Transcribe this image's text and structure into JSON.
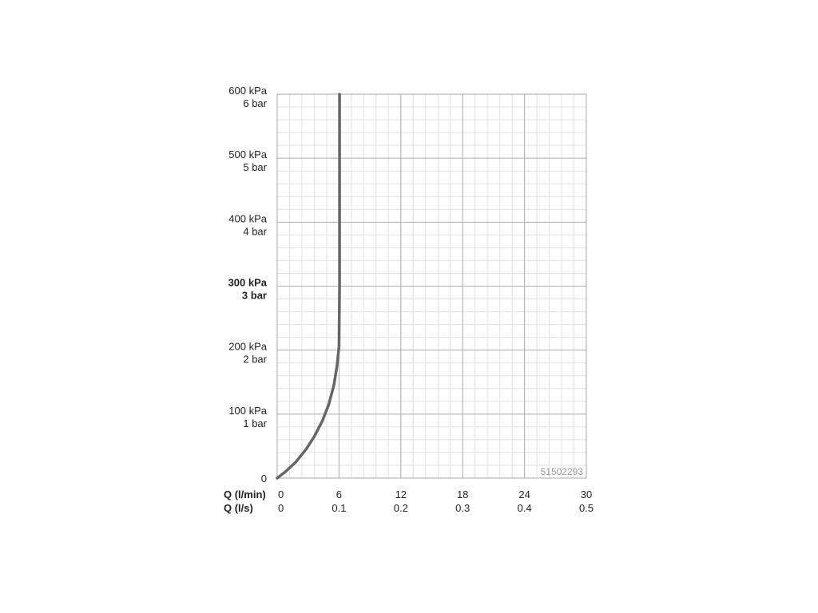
{
  "chart_data": {
    "type": "line",
    "title": "",
    "code_label": "51502293",
    "grid": true,
    "xlim": [
      0,
      30
    ],
    "ylim": [
      0,
      600
    ],
    "x_ticks": [
      0,
      6,
      12,
      18,
      24,
      30
    ],
    "x_labels_primary": {
      "title": "Q (l/min)",
      "labels": [
        "0",
        "6",
        "12",
        "18",
        "24",
        "30"
      ]
    },
    "x_labels_secondary": {
      "title": "Q (l/s)",
      "labels": [
        "0",
        "0.1",
        "0.2",
        "0.3",
        "0.4",
        "0.5"
      ]
    },
    "y_ticks": [
      0,
      100,
      200,
      300,
      400,
      500,
      600
    ],
    "y_labels": [
      {
        "kpa": "0",
        "bar": ""
      },
      {
        "kpa": "100 kPa",
        "bar": "1 bar"
      },
      {
        "kpa": "200 kPa",
        "bar": "2 bar"
      },
      {
        "kpa": "300 kPa",
        "bar": "3 bar"
      },
      {
        "kpa": "400 kPa",
        "bar": "4 bar"
      },
      {
        "kpa": "500 kPa",
        "bar": "5 bar"
      },
      {
        "kpa": "600 kPa",
        "bar": "6 bar"
      }
    ],
    "series": [
      {
        "x": [
          0,
          0.8,
          1.8,
          2.8,
          3.6,
          4.4,
          5.0,
          5.5,
          5.8,
          6.0,
          6.05,
          6.05,
          6.05
        ],
        "y": [
          0,
          10,
          25,
          45,
          65,
          90,
          115,
          145,
          175,
          205,
          300,
          500,
          600
        ]
      }
    ],
    "colors": {
      "curve": "#666666",
      "major_grid": "#b0b0b0",
      "minor_grid": "#e2e2e2",
      "text": "#222222"
    }
  }
}
